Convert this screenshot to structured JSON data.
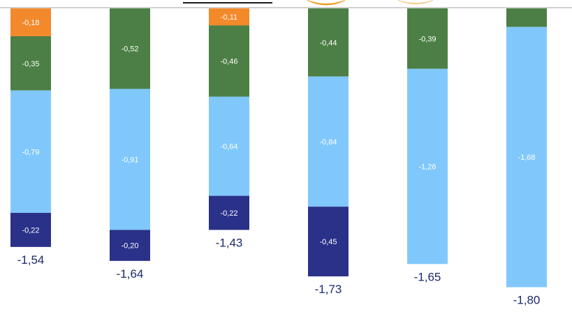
{
  "colors": {
    "background": "#ffffff",
    "axis": "#a0a0a0",
    "legend_frame": "#1a1a1a",
    "legend_orange": "#f29a1a",
    "legend_orange_light": "#f7c98a"
  },
  "chart_data": {
    "type": "bar",
    "stacked": true,
    "orientation": "vertical-negative",
    "categories": [
      "",
      "",
      "",
      "",
      "",
      ""
    ],
    "series": [
      {
        "key": "navy",
        "color": "#2a3189",
        "values": [
          -0.22,
          -0.2,
          -0.22,
          -0.45,
          0,
          0
        ]
      },
      {
        "key": "light",
        "color": "#80c8fc",
        "values": [
          -0.79,
          -0.91,
          -0.64,
          -0.84,
          -1.26,
          -1.68
        ]
      },
      {
        "key": "green",
        "color": "#4c7f45",
        "values": [
          -0.35,
          -0.52,
          -0.46,
          -0.44,
          -0.39,
          -0.12
        ]
      },
      {
        "key": "orange",
        "color": "#f2892b",
        "values": [
          -0.18,
          0,
          -0.11,
          0,
          0,
          0
        ]
      }
    ],
    "segment_labels": [
      [
        "-0,22",
        "-0,79",
        "-0,35",
        "-0,18"
      ],
      [
        "-0,20",
        "-0,91",
        "-0,52",
        ""
      ],
      [
        "-0,22",
        "-0,64",
        "-0,46",
        "-0,11"
      ],
      [
        "-0,45",
        "-0,84",
        "-0,44",
        ""
      ],
      [
        "",
        "-1,26",
        "-0,39",
        ""
      ],
      [
        "",
        "-1,68",
        "",
        ""
      ]
    ],
    "totals": [
      -1.54,
      -1.64,
      -1.43,
      -1.73,
      -1.65,
      -1.8
    ],
    "total_labels": [
      "-1,54",
      "-1,64",
      "-1,43",
      "-1,73",
      "-1,65",
      "-1,80"
    ],
    "ylim": [
      -1.8,
      0
    ],
    "title": "",
    "xlabel": "",
    "ylabel": "",
    "grid": false
  }
}
